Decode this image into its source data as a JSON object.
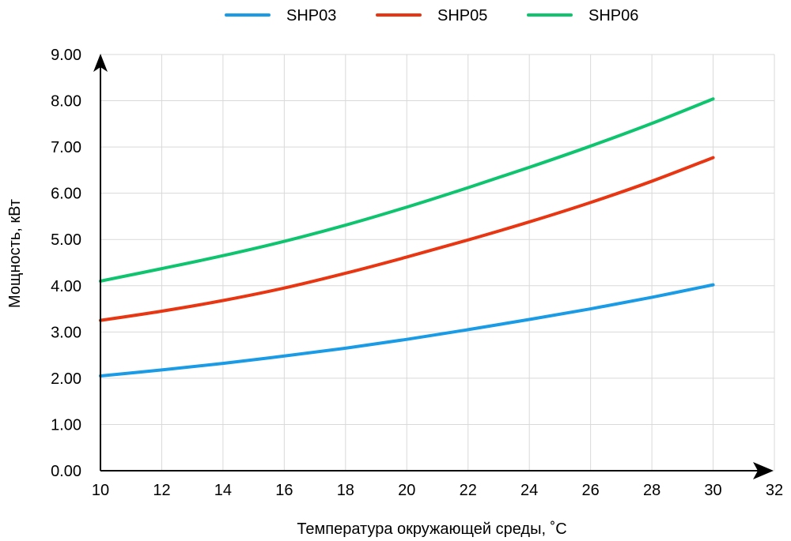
{
  "chart_data": {
    "type": "line",
    "title": "",
    "xlabel": "Температура окружающей среды, ˚С",
    "ylabel": "Мощность, кВт",
    "xlim": [
      10,
      32
    ],
    "ylim": [
      0,
      9
    ],
    "x_ticks": [
      "10",
      "12",
      "14",
      "16",
      "18",
      "20",
      "22",
      "24",
      "26",
      "28",
      "30",
      "32"
    ],
    "y_ticks": [
      "0.00",
      "1.00",
      "2.00",
      "3.00",
      "4.00",
      "5.00",
      "6.00",
      "7.00",
      "8.00",
      "9.00"
    ],
    "grid": true,
    "legend_position": "top-center",
    "x": [
      10,
      12,
      14,
      16,
      18,
      20,
      22,
      24,
      26,
      28,
      30
    ],
    "series": [
      {
        "name": "SHP03",
        "color": "#1a9be6",
        "values": [
          2.05,
          2.18,
          2.32,
          2.48,
          2.65,
          2.84,
          3.05,
          3.27,
          3.5,
          3.75,
          4.02
        ]
      },
      {
        "name": "SHP05",
        "color": "#e83512",
        "values": [
          3.25,
          3.45,
          3.68,
          3.95,
          4.27,
          4.62,
          4.99,
          5.38,
          5.8,
          6.26,
          6.77
        ]
      },
      {
        "name": "SHP06",
        "color": "#0fc46e",
        "values": [
          4.1,
          4.37,
          4.65,
          4.96,
          5.31,
          5.7,
          6.12,
          6.56,
          7.02,
          7.51,
          8.04
        ]
      }
    ]
  }
}
